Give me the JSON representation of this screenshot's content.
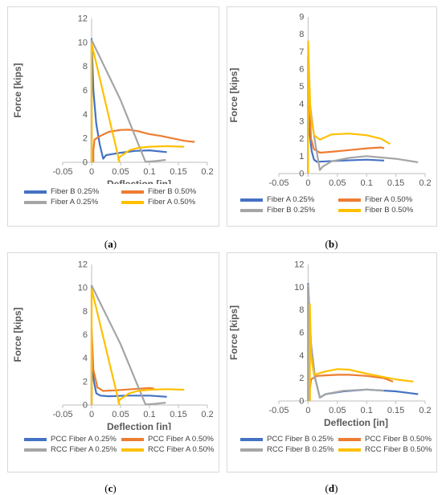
{
  "captions": [
    "a",
    "b",
    "c",
    "d"
  ],
  "colors": {
    "blue": "#4472c4",
    "orange": "#ed7d31",
    "gray": "#a5a5a5",
    "yellow": "#ffc000"
  },
  "chart_data": [
    {
      "type": "line",
      "xlabel": "Deflection [in]",
      "ylabel": "Force [kips]",
      "xlim": [
        -0.05,
        0.2
      ],
      "ylim": [
        0,
        12
      ],
      "xticks": [
        "-0.05",
        "0",
        "0.05",
        "0.1",
        "0.15",
        "0.2"
      ],
      "yticks": [
        "0",
        "2",
        "4",
        "6",
        "8",
        "10",
        "12"
      ],
      "grid": false,
      "legend": "bottom",
      "series": [
        {
          "name": "Fiber B 0.25%",
          "color": "#4472c4",
          "points": [
            [
              0,
              0
            ],
            [
              0,
              10.3
            ],
            [
              0.003,
              6
            ],
            [
              0.008,
              3.2
            ],
            [
              0.014,
              1.5
            ],
            [
              0.02,
              0.3
            ],
            [
              0.025,
              0.6
            ],
            [
              0.05,
              0.8
            ],
            [
              0.075,
              0.95
            ],
            [
              0.1,
              1.0
            ],
            [
              0.13,
              0.85
            ]
          ]
        },
        {
          "name": "Fiber B 0.50%",
          "color": "#ed7d31",
          "points": [
            [
              0.003,
              0
            ],
            [
              0.003,
              1.0
            ],
            [
              0.005,
              1.9
            ],
            [
              0.015,
              2.2
            ],
            [
              0.03,
              2.55
            ],
            [
              0.05,
              2.7
            ],
            [
              0.065,
              2.72
            ],
            [
              0.08,
              2.6
            ],
            [
              0.1,
              2.35
            ],
            [
              0.12,
              2.2
            ],
            [
              0.14,
              2.0
            ],
            [
              0.16,
              1.8
            ],
            [
              0.178,
              1.7
            ]
          ]
        },
        {
          "name": "Fiber A 0.25%",
          "color": "#a5a5a5",
          "points": [
            [
              0,
              0
            ],
            [
              0,
              10.2
            ],
            [
              0.05,
              5.2
            ],
            [
              0.093,
              0.05
            ],
            [
              0.11,
              0.1
            ],
            [
              0.128,
              0.2
            ]
          ]
        },
        {
          "name": "Fiber A 0.50%",
          "color": "#ffc000",
          "points": [
            [
              0,
              0
            ],
            [
              0,
              9.9
            ],
            [
              0.048,
              0.05
            ],
            [
              0.046,
              0.3
            ],
            [
              0.05,
              0.5
            ],
            [
              0.065,
              1.0
            ],
            [
              0.08,
              1.2
            ],
            [
              0.1,
              1.3
            ],
            [
              0.13,
              1.35
            ],
            [
              0.16,
              1.3
            ]
          ]
        }
      ]
    },
    {
      "type": "line",
      "xlabel": "Deflection [in]",
      "ylabel": "Force [kips]",
      "xlim": [
        -0.05,
        0.2
      ],
      "ylim": [
        0,
        9
      ],
      "xticks": [
        "-0.05",
        "0",
        "0.05",
        "0.1",
        "0.15",
        "0.2"
      ],
      "yticks": [
        "0",
        "1",
        "2",
        "3",
        "4",
        "5",
        "6",
        "7",
        "8",
        "9"
      ],
      "grid": false,
      "legend": "bottom",
      "series": [
        {
          "name": "Fiber A 0.25%",
          "color": "#4472c4",
          "points": [
            [
              0,
              0
            ],
            [
              0,
              6.7
            ],
            [
              0.003,
              2.2
            ],
            [
              0.006,
              1.3
            ],
            [
              0.01,
              0.8
            ],
            [
              0.015,
              0.68
            ],
            [
              0.03,
              0.7
            ],
            [
              0.06,
              0.75
            ],
            [
              0.1,
              0.8
            ],
            [
              0.13,
              0.75
            ]
          ]
        },
        {
          "name": "Fiber A 0.50%",
          "color": "#ed7d31",
          "points": [
            [
              0,
              0
            ],
            [
              0,
              5.8
            ],
            [
              0.005,
              2.0
            ],
            [
              0.01,
              1.4
            ],
            [
              0.02,
              1.2
            ],
            [
              0.04,
              1.25
            ],
            [
              0.07,
              1.35
            ],
            [
              0.1,
              1.45
            ],
            [
              0.125,
              1.5
            ],
            [
              0.13,
              1.45
            ]
          ]
        },
        {
          "name": "Fiber B 0.25%",
          "color": "#a5a5a5",
          "points": [
            [
              0,
              0
            ],
            [
              0,
              4.8
            ],
            [
              0.01,
              2.2
            ],
            [
              0.015,
              1.2
            ],
            [
              0.02,
              0.2
            ],
            [
              0.025,
              0.4
            ],
            [
              0.04,
              0.7
            ],
            [
              0.07,
              0.9
            ],
            [
              0.1,
              1.0
            ],
            [
              0.15,
              0.85
            ],
            [
              0.188,
              0.65
            ]
          ]
        },
        {
          "name": "Fiber B 0.50%",
          "color": "#ffc000",
          "points": [
            [
              0,
              0
            ],
            [
              0,
              7.6
            ],
            [
              0.004,
              3.5
            ],
            [
              0.01,
              2.2
            ],
            [
              0.02,
              1.95
            ],
            [
              0.04,
              2.25
            ],
            [
              0.07,
              2.3
            ],
            [
              0.1,
              2.2
            ],
            [
              0.125,
              2.0
            ],
            [
              0.14,
              1.7
            ]
          ]
        }
      ]
    },
    {
      "type": "line",
      "xlabel": "Deflection [in]",
      "ylabel": "Force [kips]",
      "xlim": [
        -0.05,
        0.2
      ],
      "ylim": [
        0,
        12
      ],
      "xticks": [
        "-0.05",
        "0",
        "0.05",
        "0.1",
        "0.15",
        "0.2"
      ],
      "yticks": [
        "0",
        "2",
        "4",
        "6",
        "8",
        "10",
        "12"
      ],
      "grid": false,
      "legend": "bottom",
      "series": [
        {
          "name": "PCC Fiber A 0.25%",
          "color": "#4472c4",
          "points": [
            [
              0,
              0
            ],
            [
              0,
              3.5
            ],
            [
              0.004,
              2.0
            ],
            [
              0.008,
              1.0
            ],
            [
              0.015,
              0.8
            ],
            [
              0.03,
              0.75
            ],
            [
              0.06,
              0.8
            ],
            [
              0.1,
              0.8
            ],
            [
              0.13,
              0.7
            ]
          ]
        },
        {
          "name": "PCC Fiber A 0.50%",
          "color": "#ed7d31",
          "points": [
            [
              0,
              0
            ],
            [
              0,
              6.5
            ],
            [
              0.003,
              3.0
            ],
            [
              0.01,
              1.5
            ],
            [
              0.02,
              1.2
            ],
            [
              0.04,
              1.25
            ],
            [
              0.07,
              1.35
            ],
            [
              0.1,
              1.45
            ],
            [
              0.108,
              1.4
            ]
          ]
        },
        {
          "name": "RCC Fiber A 0.25%",
          "color": "#a5a5a5",
          "points": [
            [
              0,
              0
            ],
            [
              0,
              10.2
            ],
            [
              0.05,
              5.2
            ],
            [
              0.093,
              0.05
            ],
            [
              0.11,
              0.1
            ],
            [
              0.128,
              0.2
            ]
          ]
        },
        {
          "name": "RCC Fiber A 0.50%",
          "color": "#ffc000",
          "points": [
            [
              0,
              0
            ],
            [
              0,
              9.9
            ],
            [
              0.048,
              0.05
            ],
            [
              0.046,
              0.3
            ],
            [
              0.05,
              0.5
            ],
            [
              0.065,
              1.0
            ],
            [
              0.08,
              1.2
            ],
            [
              0.1,
              1.3
            ],
            [
              0.13,
              1.35
            ],
            [
              0.16,
              1.3
            ]
          ]
        }
      ]
    },
    {
      "type": "line",
      "xlabel": "Deflection [in]",
      "ylabel": "Force [kips]",
      "xlim": [
        -0.05,
        0.2
      ],
      "ylim": [
        0,
        12
      ],
      "xticks": [
        "-0.05",
        "0",
        "0.05",
        "0.1",
        "0.15",
        "0.2"
      ],
      "yticks": [
        "0",
        "2",
        "4",
        "6",
        "8",
        "10",
        "12"
      ],
      "grid": false,
      "legend": "bottom",
      "series": [
        {
          "name": "PCC Fiber B 0.25%",
          "color": "#4472c4",
          "points": [
            [
              0,
              0
            ],
            [
              0,
              10.3
            ],
            [
              0.005,
              5.0
            ],
            [
              0.012,
              2.0
            ],
            [
              0.02,
              0.3
            ],
            [
              0.03,
              0.6
            ],
            [
              0.06,
              0.85
            ],
            [
              0.1,
              1.0
            ],
            [
              0.15,
              0.85
            ],
            [
              0.188,
              0.6
            ]
          ]
        },
        {
          "name": "PCC Fiber B 0.50%",
          "color": "#ed7d31",
          "points": [
            [
              0.003,
              0
            ],
            [
              0.003,
              1.0
            ],
            [
              0.005,
              1.9
            ],
            [
              0.015,
              2.2
            ],
            [
              0.03,
              2.25
            ],
            [
              0.05,
              2.3
            ],
            [
              0.07,
              2.3
            ],
            [
              0.1,
              2.2
            ],
            [
              0.13,
              2.0
            ],
            [
              0.145,
              1.7
            ]
          ]
        },
        {
          "name": "RCC Fiber B 0.25%",
          "color": "#a5a5a5",
          "points": [
            [
              0,
              0
            ],
            [
              0,
              10.2
            ],
            [
              0.005,
              5.0
            ],
            [
              0.012,
              2.0
            ],
            [
              0.02,
              0.3
            ],
            [
              0.03,
              0.6
            ],
            [
              0.06,
              0.9
            ],
            [
              0.1,
              1.0
            ],
            [
              0.13,
              0.9
            ]
          ]
        },
        {
          "name": "RCC Fiber B 0.50%",
          "color": "#ffc000",
          "points": [
            [
              0.003,
              0
            ],
            [
              0.003,
              8.5
            ],
            [
              0.005,
              4.0
            ],
            [
              0.01,
              2.3
            ],
            [
              0.03,
              2.6
            ],
            [
              0.05,
              2.8
            ],
            [
              0.07,
              2.75
            ],
            [
              0.1,
              2.4
            ],
            [
              0.13,
              2.1
            ],
            [
              0.15,
              1.9
            ],
            [
              0.18,
              1.7
            ]
          ]
        }
      ]
    }
  ]
}
